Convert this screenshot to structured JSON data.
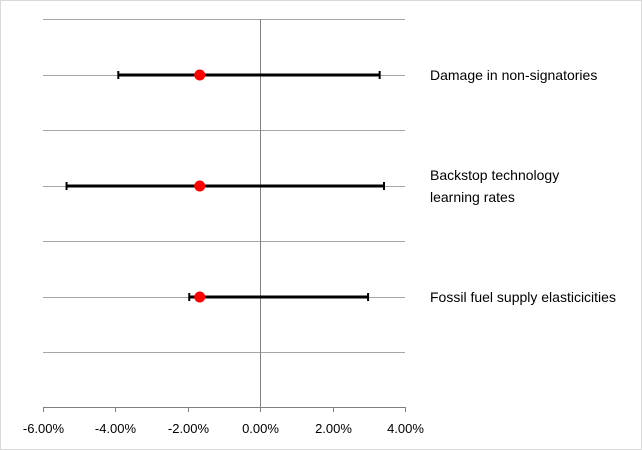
{
  "chart_data": {
    "type": "scatter",
    "subtype": "dot-with-error-bars",
    "title": "",
    "xlabel": "",
    "ylabel": "",
    "xlim": [
      -0.06,
      0.04
    ],
    "x_ticks": [
      "-6.00%",
      "-4.00%",
      "-2.00%",
      "0.00%",
      "2.00%",
      "4.00%"
    ],
    "x_tick_values": [
      -0.06,
      -0.04,
      -0.02,
      0.0,
      0.02,
      0.04
    ],
    "grid": "horizontal",
    "colors": {
      "point": "#ff0000",
      "errorbar": "#000000",
      "grid": "#a6a6a6",
      "zero_line": "#808080"
    },
    "series": [
      {
        "label": [
          "Damage in non-signatories"
        ],
        "value": -0.0167,
        "low": -0.0392,
        "high": 0.033
      },
      {
        "label": [
          "Backstop technology",
          "learning rates"
        ],
        "value": -0.0167,
        "low": -0.0535,
        "high": 0.0342
      },
      {
        "label": [
          "Fossil fuel supply elasticicities"
        ],
        "value": -0.0167,
        "low": -0.0196,
        "high": 0.0298
      }
    ]
  }
}
